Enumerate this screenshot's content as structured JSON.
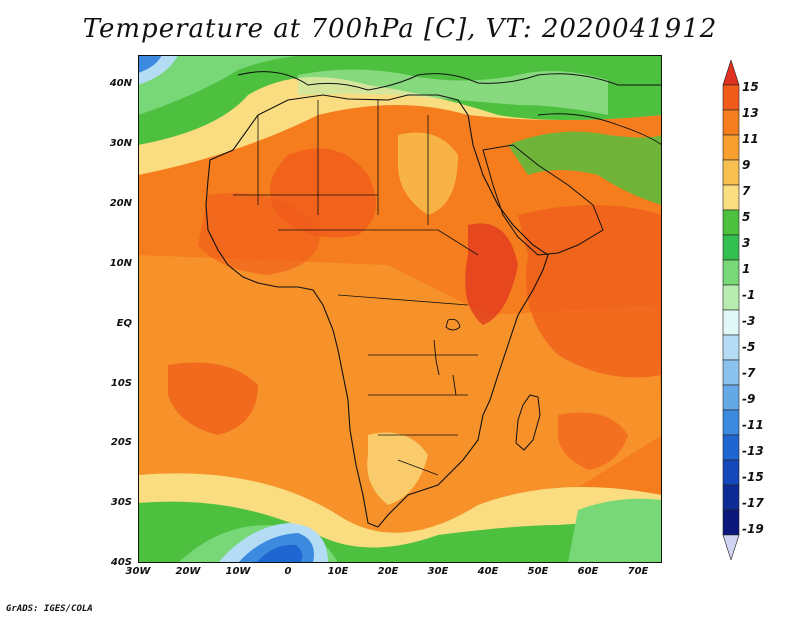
{
  "title": "Temperature at 700hPa [C], VT: 2020041912",
  "credit": "GrADS: IGES/COLA",
  "map": {
    "lat_ticks": [
      "40N",
      "30N",
      "20N",
      "10N",
      "EQ",
      "10S",
      "20S",
      "30S",
      "40S"
    ],
    "lon_ticks": [
      "30W",
      "20W",
      "10W",
      "0",
      "10E",
      "20E",
      "30E",
      "40E",
      "50E",
      "60E",
      "70E"
    ],
    "lat_range": [
      -40,
      45
    ],
    "lon_range": [
      -30,
      75
    ]
  },
  "colorbar": {
    "labels": [
      "15",
      "13",
      "11",
      "9",
      "7",
      "5",
      "3",
      "1",
      "-1",
      "-3",
      "-5",
      "-7",
      "-9",
      "-11",
      "-13",
      "-15",
      "-17",
      "-19"
    ],
    "colors": [
      "#e0301e",
      "#f05a1a",
      "#f57d1e",
      "#f7a030",
      "#f8c050",
      "#f9dd80",
      "#4dc040",
      "#34c050",
      "#78d878",
      "#b8ecb0",
      "#e2f8f6",
      "#b4ddf5",
      "#8cc3ee",
      "#64a8e6",
      "#3c8ae0",
      "#1f66d2",
      "#1448bb",
      "#0e2a94",
      "#0b177a",
      "#d0d4f2"
    ]
  }
}
